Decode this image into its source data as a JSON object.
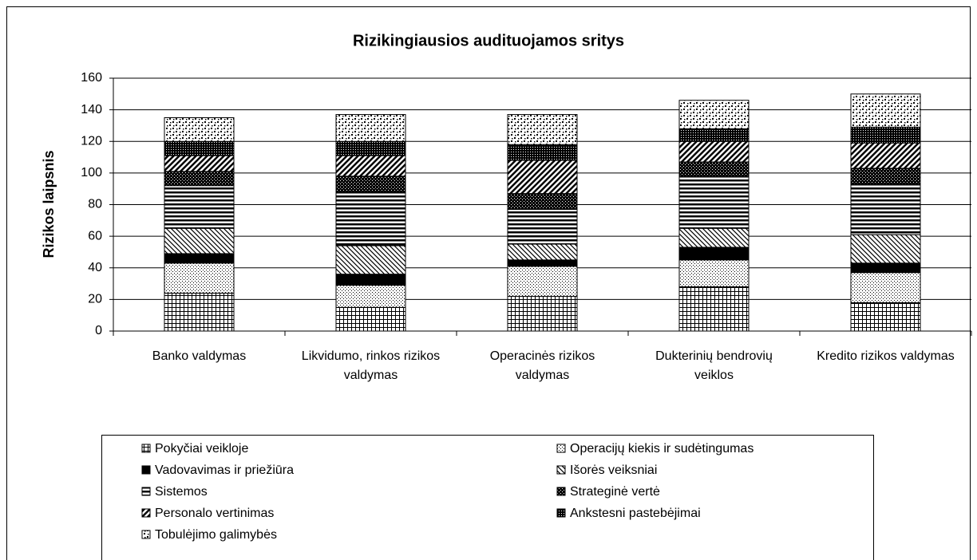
{
  "chart_data": {
    "type": "stacked_bar",
    "title": "Rizikingiausios audituojamos sritys",
    "y_label": "Rizikos laipsnis",
    "categories": [
      "Banko valdymas",
      "Likvidumo, rinkos rizikos valdymas",
      "Operacinės rizikos valdymas",
      "Dukterinių bendrovių veiklos",
      "Kredito rizikos valdymas"
    ],
    "series": [
      {
        "name": "Pokyčiai veikloje",
        "values": [
          24,
          15,
          22,
          28,
          18
        ]
      },
      {
        "name": "Operacijų kiekis ir sudėtingumas",
        "values": [
          19,
          14,
          19,
          17,
          19
        ]
      },
      {
        "name": "Vadovavimas ir priežiūra",
        "values": [
          6,
          7,
          4,
          8,
          6
        ]
      },
      {
        "name": "Išorės veiksniai",
        "values": [
          16,
          18,
          10,
          12,
          18
        ]
      },
      {
        "name": "Sistemos",
        "values": [
          27,
          34,
          22,
          33,
          32
        ]
      },
      {
        "name": "Strateginė vertė",
        "values": [
          9,
          10,
          10,
          9,
          10
        ]
      },
      {
        "name": "Personalo vertinimas",
        "values": [
          10,
          13,
          21,
          13,
          16
        ]
      },
      {
        "name": "Ankstesni pastebėjimai",
        "values": [
          9,
          9,
          10,
          8,
          10
        ]
      },
      {
        "name": "Tobulėjimo galimybės",
        "values": [
          15,
          17,
          19,
          18,
          21
        ]
      }
    ],
    "ylim": [
      0,
      160
    ],
    "yticks": [
      0,
      20,
      40,
      60,
      80,
      100,
      120,
      140,
      160
    ],
    "grid": true,
    "legend": "bottom"
  }
}
